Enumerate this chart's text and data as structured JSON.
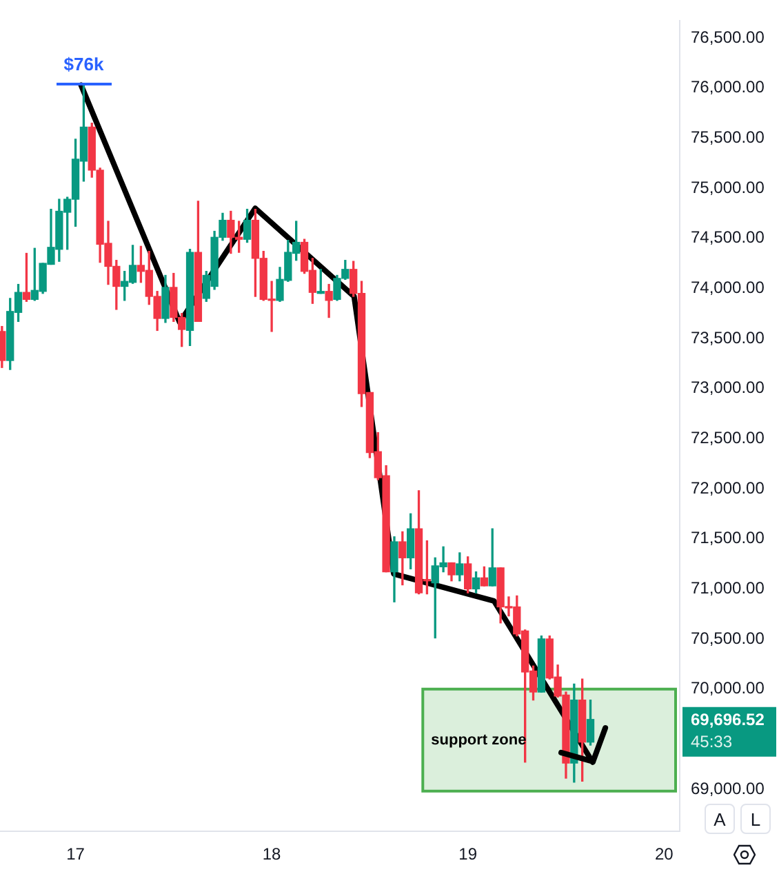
{
  "chart_data": {
    "type": "candlestick",
    "x": [
      16.625,
      16.6667,
      16.7083,
      16.75,
      16.7917,
      16.8333,
      16.875,
      16.9167,
      16.9583,
      17,
      17.0417,
      17.0833,
      17.125,
      17.1667,
      17.2083,
      17.25,
      17.2917,
      17.3333,
      17.375,
      17.4167,
      17.4583,
      17.5,
      17.5417,
      17.5833,
      17.625,
      17.6667,
      17.7083,
      17.75,
      17.7917,
      17.8333,
      17.875,
      17.9167,
      17.9583,
      18,
      18.0417,
      18.0833,
      18.125,
      18.1667,
      18.2083,
      18.25,
      18.2917,
      18.3333,
      18.375,
      18.4167,
      18.4583,
      18.5,
      18.5417,
      18.5833,
      18.625,
      18.6667,
      18.7083,
      18.75,
      18.7917,
      18.8333,
      18.875,
      18.9167,
      18.9583,
      19,
      19.0417,
      19.0833,
      19.125,
      19.1667,
      19.2083,
      19.25,
      19.2917,
      19.3333,
      19.375,
      19.4167,
      19.4583,
      19.5,
      19.5417,
      19.5833,
      19.625
    ],
    "ohlc": [
      [
        73570,
        73620,
        73210,
        73280
      ],
      [
        73280,
        73900,
        73190,
        73770
      ],
      [
        73760,
        74040,
        73670,
        73960
      ],
      [
        73960,
        74350,
        73870,
        73890
      ],
      [
        73890,
        74400,
        73880,
        73980
      ],
      [
        73970,
        74250,
        73950,
        74250
      ],
      [
        74240,
        74790,
        74240,
        74410
      ],
      [
        74390,
        74890,
        74270,
        74770
      ],
      [
        74760,
        74910,
        74390,
        74890
      ],
      [
        74890,
        75490,
        74620,
        75290
      ],
      [
        75270,
        76030,
        75070,
        75610
      ],
      [
        75610,
        75650,
        75110,
        75180
      ],
      [
        75180,
        75200,
        74260,
        74440
      ],
      [
        74450,
        74670,
        74040,
        74220
      ],
      [
        74220,
        74280,
        73790,
        74020
      ],
      [
        74020,
        74170,
        73880,
        74070
      ],
      [
        74060,
        74430,
        74050,
        74230
      ],
      [
        74230,
        74420,
        74060,
        74170
      ],
      [
        74180,
        74370,
        73840,
        73920
      ],
      [
        73920,
        73970,
        73580,
        73700
      ],
      [
        73700,
        74130,
        73660,
        74010
      ],
      [
        74010,
        74150,
        73670,
        73710
      ],
      [
        73710,
        73750,
        73420,
        73590
      ],
      [
        73580,
        74390,
        73430,
        74360
      ],
      [
        74360,
        74870,
        73670,
        73670
      ],
      [
        73900,
        74170,
        73870,
        74130
      ],
      [
        74020,
        74570,
        73990,
        74510
      ],
      [
        74510,
        74750,
        74480,
        74680
      ],
      [
        74680,
        74770,
        74350,
        74510
      ],
      [
        74510,
        74670,
        74360,
        74490
      ],
      [
        74490,
        74790,
        74460,
        74680
      ],
      [
        74680,
        74790,
        73920,
        74300
      ],
      [
        74300,
        74370,
        73880,
        73890
      ],
      [
        73890,
        74070,
        73570,
        73880
      ],
      [
        73880,
        74210,
        73870,
        74090
      ],
      [
        74080,
        74480,
        74070,
        74360
      ],
      [
        74350,
        74670,
        74280,
        74460
      ],
      [
        74460,
        74490,
        74150,
        74170
      ],
      [
        74180,
        74300,
        73850,
        73960
      ],
      [
        73950,
        74190,
        73950,
        73970
      ],
      [
        73970,
        74040,
        73710,
        73880
      ],
      [
        73890,
        74130,
        73880,
        74100
      ],
      [
        74100,
        74280,
        74090,
        74190
      ],
      [
        74190,
        74270,
        73920,
        73950
      ],
      [
        73950,
        74070,
        72820,
        72950
      ],
      [
        72960,
        72960,
        72310,
        72360
      ],
      [
        72370,
        72560,
        72090,
        72110
      ],
      [
        72130,
        72230,
        71170,
        71170
      ],
      [
        71170,
        71520,
        70870,
        71470
      ],
      [
        71470,
        71570,
        71040,
        71310
      ],
      [
        71310,
        71750,
        71200,
        71600
      ],
      [
        71600,
        71980,
        70950,
        70960
      ],
      [
        71090,
        71480,
        70950,
        71080
      ],
      [
        71060,
        71310,
        70510,
        71230
      ],
      [
        71220,
        71420,
        71170,
        71260
      ],
      [
        71260,
        71260,
        71080,
        71140
      ],
      [
        71140,
        71360,
        71080,
        71250
      ],
      [
        71250,
        71320,
        70960,
        71000
      ],
      [
        71000,
        71170,
        70960,
        71110
      ],
      [
        71110,
        71220,
        71030,
        71030
      ],
      [
        71030,
        71600,
        71030,
        71210
      ],
      [
        71210,
        71210,
        70660,
        70820
      ],
      [
        70820,
        70920,
        70730,
        70810
      ],
      [
        70820,
        70930,
        70530,
        70550
      ],
      [
        70580,
        70590,
        69270,
        70170
      ],
      [
        70180,
        70230,
        69890,
        69970
      ],
      [
        69970,
        70530,
        69970,
        70500
      ],
      [
        70500,
        70530,
        70100,
        70110
      ],
      [
        70120,
        70240,
        69920,
        69930
      ],
      [
        69940,
        69970,
        69110,
        69260
      ],
      [
        69260,
        70050,
        69070,
        69890
      ],
      [
        69890,
        70100,
        69080,
        69470
      ],
      [
        69470,
        69890,
        69440,
        69696.52
      ]
    ],
    "colors": [
      "#f23645",
      "#089981",
      "#089981",
      "#f23645",
      "#089981",
      "#089981",
      "#089981",
      "#089981",
      "#089981",
      "#089981",
      "#089981",
      "#f23645",
      "#f23645",
      "#f23645",
      "#f23645",
      "#089981",
      "#089981",
      "#f23645",
      "#f23645",
      "#f23645",
      "#089981",
      "#f23645",
      "#f23645",
      "#089981",
      "#f23645",
      "#089981",
      "#089981",
      "#089981",
      "#f23645",
      "#f23645",
      "#089981",
      "#f23645",
      "#f23645",
      "#f23645",
      "#089981",
      "#089981",
      "#089981",
      "#f23645",
      "#f23645",
      "#089981",
      "#f23645",
      "#089981",
      "#089981",
      "#f23645",
      "#f23645",
      "#f23645",
      "#f23645",
      "#f23645",
      "#089981",
      "#f23645",
      "#089981",
      "#f23645",
      "#f23645",
      "#089981",
      "#089981",
      "#f23645",
      "#089981",
      "#f23645",
      "#089981",
      "#f23645",
      "#089981",
      "#f23645",
      "#f23645",
      "#f23645",
      "#f23645",
      "#f23645",
      "#089981",
      "#f23645",
      "#f23645",
      "#f23645",
      "#089981",
      "#f23645",
      "#089981"
    ],
    "series": [
      {
        "type": "line",
        "color": "#000000",
        "x": [
          17.028,
          17.531,
          17.916,
          18.42,
          18.622,
          19.133,
          19.636
        ],
        "values": [
          76030,
          73660,
          74800,
          73920,
          71150,
          70880,
          69270
        ]
      }
    ],
    "xlim": [
      16.615,
      20.08
    ],
    "xticks": [
      17,
      18,
      19,
      20
    ],
    "ylim": [
      68580,
      76670
    ],
    "yticks": [
      {
        "value": 69000,
        "label": "69,000.00"
      },
      {
        "value": 70000,
        "label": "70,000.00"
      },
      {
        "value": 70500,
        "label": "70,500.00"
      },
      {
        "value": 71000,
        "label": "71,000.00"
      },
      {
        "value": 71500,
        "label": "71,500.00"
      },
      {
        "value": 72000,
        "label": "72,000.00"
      },
      {
        "value": 72500,
        "label": "72,500.00"
      },
      {
        "value": 73000,
        "label": "73,000.00"
      },
      {
        "value": 73500,
        "label": "73,500.00"
      },
      {
        "value": 74000,
        "label": "74,000.00"
      },
      {
        "value": 74500,
        "label": "74,500.00"
      },
      {
        "value": 75000,
        "label": "75,000.00"
      },
      {
        "value": 75500,
        "label": "75,500.00"
      },
      {
        "value": 76000,
        "label": "76,000.00"
      },
      {
        "value": 76500,
        "label": "76,500.00"
      }
    ],
    "bands": [
      {
        "axis": "y",
        "from": 68980,
        "to": 70000,
        "label": "support zone",
        "color": "#4caf50"
      }
    ],
    "annotations": [
      {
        "text": "$76k",
        "x": 17.0417,
        "y": 76030
      },
      "69,696.52",
      "45:33",
      "A",
      "L"
    ],
    "grid": false
  }
}
